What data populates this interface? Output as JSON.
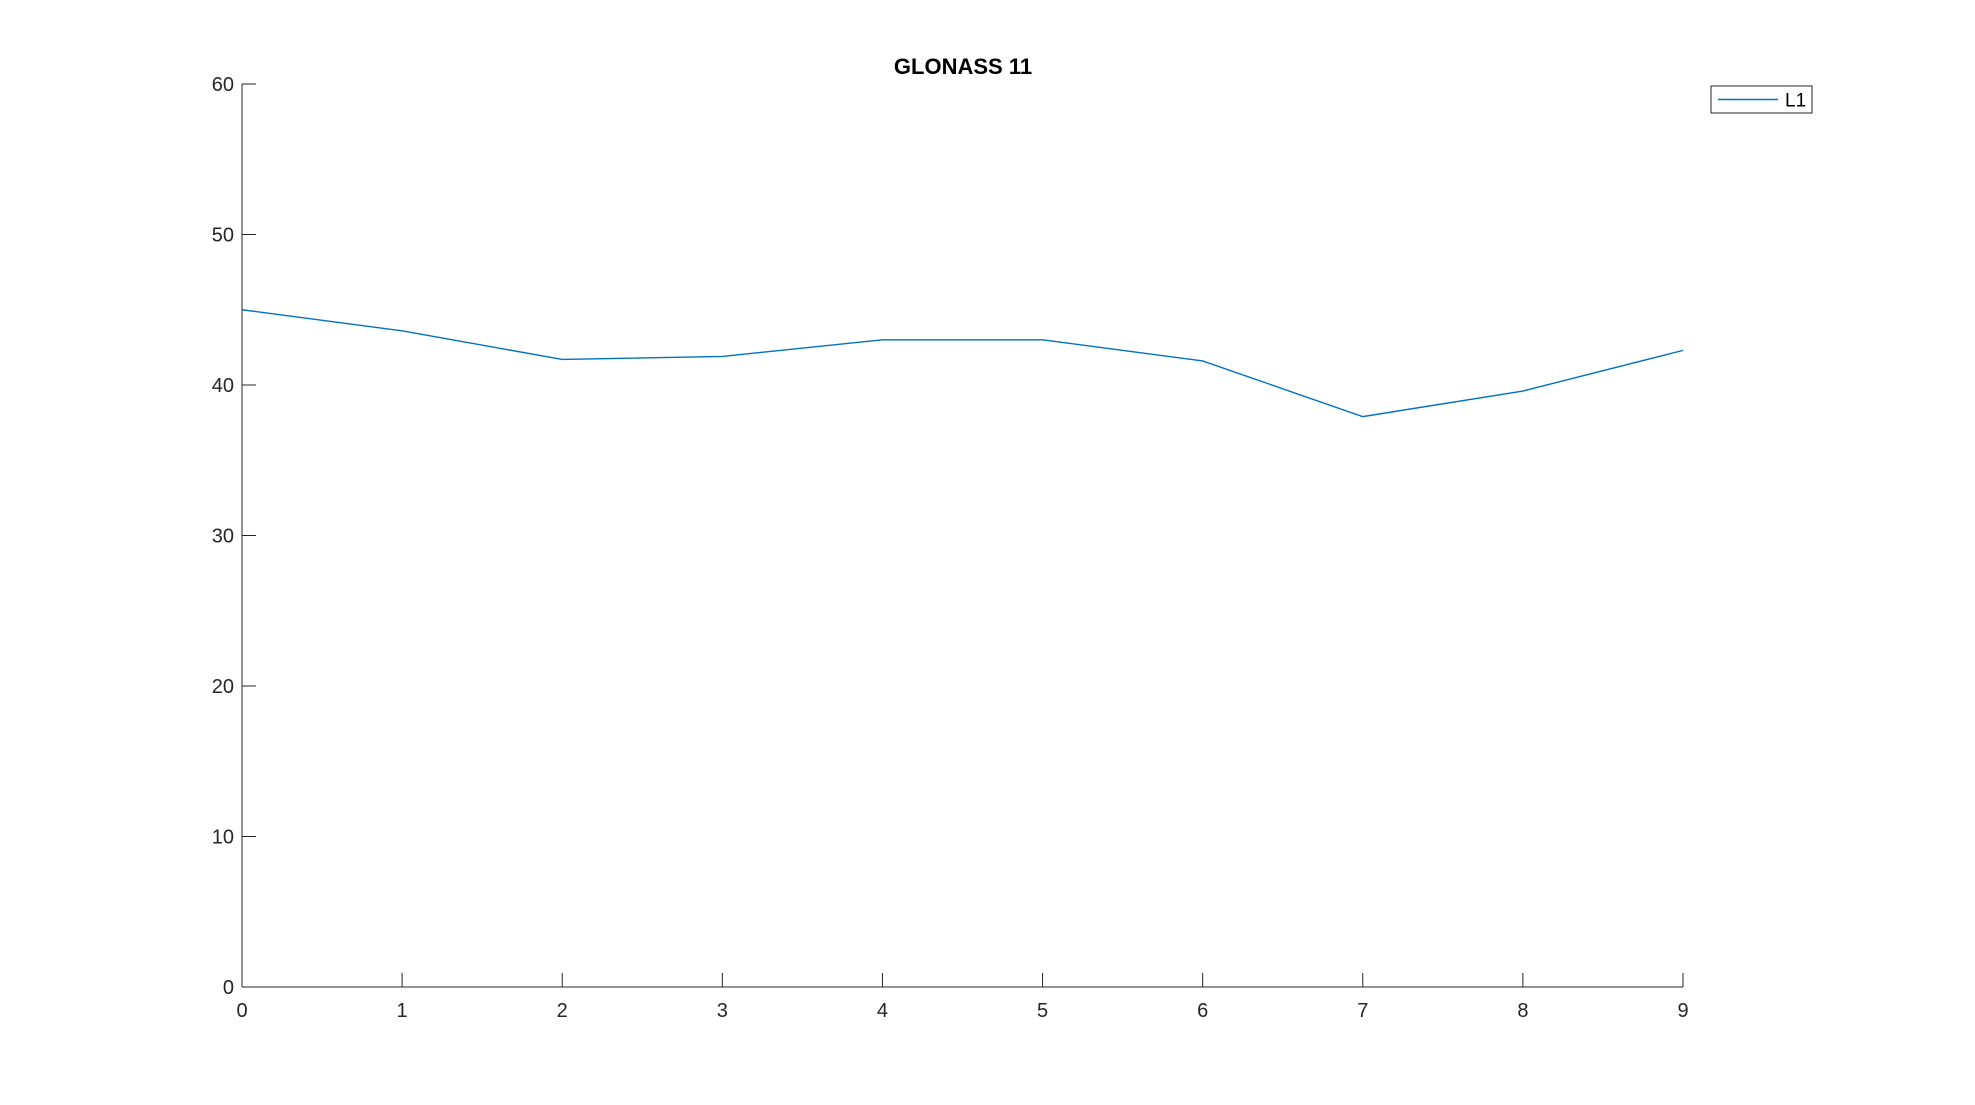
{
  "chart_data": {
    "type": "line",
    "title": "GLONASS 11",
    "xlabel": "",
    "ylabel": "",
    "x": [
      0,
      1,
      2,
      3,
      4,
      5,
      6,
      7,
      8,
      9
    ],
    "xticks": [
      "0",
      "1",
      "2",
      "3",
      "4",
      "5",
      "6",
      "7",
      "8",
      "9"
    ],
    "yticks": [
      "0",
      "10",
      "20",
      "30",
      "40",
      "50",
      "60"
    ],
    "xlim": [
      0,
      9
    ],
    "ylim": [
      0,
      60
    ],
    "grid": false,
    "legend_position": "top-right",
    "series": [
      {
        "name": "L1",
        "color": "#0072BD",
        "values": [
          45.0,
          43.6,
          41.7,
          41.9,
          43.0,
          43.0,
          41.6,
          37.9,
          39.6,
          42.3
        ]
      }
    ]
  }
}
